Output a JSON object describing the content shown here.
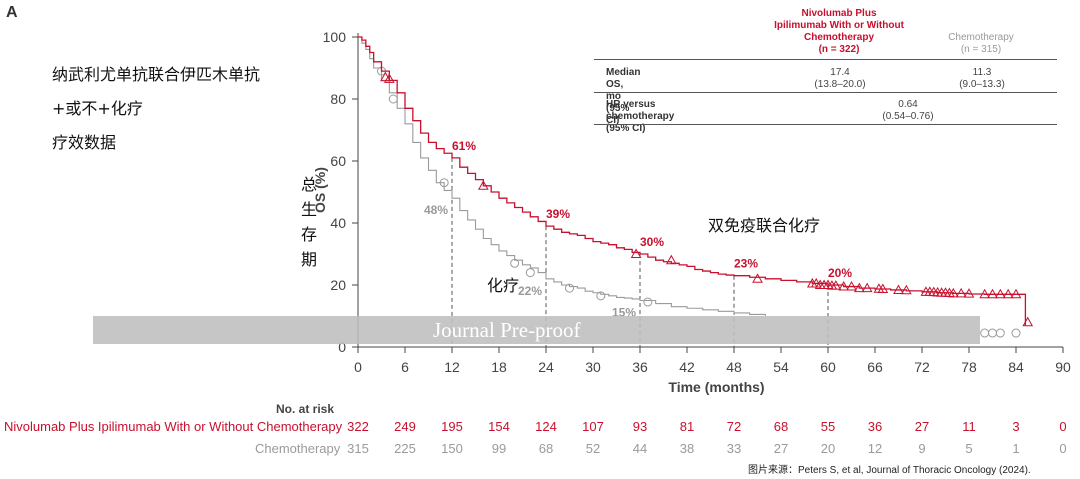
{
  "panel_letter": "A",
  "cn_title_lines": [
    "纳武利尤单抗联合伊匹木单抗",
    "+或不+化疗",
    "疗效数据"
  ],
  "cn_ylabel_chars": [
    "总",
    "生",
    "存",
    "期"
  ],
  "cn_annotations": {
    "combo": "双免疫联合化疗",
    "chemo": "化疗"
  },
  "watermark": "Journal Pre-proof",
  "colors": {
    "combo": "#c8102e",
    "chemo": "#9a9a9a",
    "axis": "#444444"
  },
  "summary_table": {
    "header_combo": [
      "Nivolumab Plus",
      "Ipilimumab With or Without",
      "Chemotherapy",
      "(n = 322)"
    ],
    "header_chemo": [
      "Chemotherapy",
      "(n = 315)"
    ],
    "rows": [
      {
        "label": [
          "Median OS, mo",
          "(95% CI)"
        ],
        "combo": [
          "17.4",
          "(13.8–20.0)"
        ],
        "chemo": [
          "11.3",
          "(9.0–13.3)"
        ]
      },
      {
        "label": [
          "HR versus chemotherapy",
          "(95% CI)"
        ],
        "shared": [
          "0.64",
          "(0.54–0.76)"
        ]
      }
    ]
  },
  "at_risk": {
    "title": "No. at risk",
    "combo_label": "Nivolumab Plus Ipilimumab With or Without Chemotherapy",
    "chemo_label": "Chemotherapy",
    "times": [
      0,
      6,
      12,
      18,
      24,
      30,
      36,
      42,
      48,
      54,
      60,
      66,
      72,
      78,
      84,
      90
    ],
    "combo": [
      "322",
      "249",
      "195",
      "154",
      "124",
      "107",
      "93",
      "81",
      "72",
      "68",
      "55",
      "36",
      "27",
      "11",
      "3",
      "0"
    ],
    "chemo": [
      "315",
      "225",
      "150",
      "99",
      "68",
      "52",
      "44",
      "38",
      "33",
      "27",
      "20",
      "12",
      "9",
      "5",
      "1",
      "0"
    ]
  },
  "source": "图片来源：Peters S, et al, Journal of Thoracic Oncology (2024).",
  "chart_data": {
    "type": "line",
    "xlabel": "Time (months)",
    "ylabel": "OS (%)",
    "xlim": [
      0,
      90
    ],
    "ylim": [
      0,
      100
    ],
    "xticks": [
      0,
      6,
      12,
      18,
      24,
      30,
      36,
      42,
      48,
      54,
      60,
      66,
      72,
      78,
      84,
      90
    ],
    "yticks": [
      0,
      20,
      40,
      60,
      80,
      100
    ],
    "series": [
      {
        "name": "Nivolumab Plus Ipilimumab With or Without Chemotherapy",
        "key": "combo",
        "x": [
          0,
          0.5,
          1,
          1.5,
          2,
          3,
          4,
          5,
          6,
          7,
          8,
          9,
          10,
          11,
          12,
          13,
          14,
          15,
          16,
          17,
          18,
          19,
          20,
          21,
          22,
          23,
          24,
          25,
          26,
          27,
          28,
          29,
          30,
          31,
          32,
          33,
          34,
          35,
          36,
          37,
          38,
          39,
          40,
          41,
          42,
          43,
          44,
          45,
          46,
          47,
          48,
          50,
          52,
          54,
          56,
          58,
          60,
          62,
          64,
          66,
          68,
          70,
          72,
          74,
          76,
          78,
          80,
          82,
          84.8,
          85.2
        ],
        "y": [
          100,
          99,
          97,
          95,
          92,
          89,
          86,
          82,
          77,
          73,
          69,
          66,
          64,
          62.5,
          61,
          58,
          56,
          54,
          52,
          50,
          48,
          46.5,
          45,
          43.5,
          42,
          40.5,
          39,
          38,
          37,
          36.5,
          36,
          35,
          34,
          33.5,
          33,
          32,
          31.5,
          30.5,
          30,
          29,
          28,
          27.5,
          27,
          26.5,
          26,
          25,
          24.5,
          24,
          23.5,
          23.2,
          23,
          22.5,
          22,
          21.5,
          21,
          20.5,
          20,
          19.5,
          19,
          18.7,
          18.4,
          18.1,
          17.8,
          17.5,
          17.3,
          17.1,
          17,
          17,
          17,
          7
        ],
        "censor_x": [
          3.5,
          4,
          16,
          35.5,
          40,
          51,
          58,
          58.5,
          59,
          59.5,
          60,
          60.5,
          61,
          62,
          63,
          64,
          65,
          66.5,
          67,
          69,
          70,
          72.5,
          73,
          73.5,
          74,
          74.5,
          75,
          75.5,
          76,
          77,
          78,
          80,
          81,
          82,
          83,
          84,
          85.5
        ],
        "censor_y": [
          87,
          86.5,
          52,
          30,
          28,
          22,
          20.5,
          20.5,
          20,
          20,
          20,
          19.8,
          19.8,
          19.5,
          19.5,
          19,
          19,
          18.8,
          18.7,
          18.4,
          18.3,
          17.8,
          17.8,
          17.7,
          17.6,
          17.5,
          17.5,
          17.4,
          17.3,
          17.3,
          17.2,
          17,
          17,
          17,
          17,
          17,
          8
        ]
      },
      {
        "name": "Chemotherapy",
        "key": "chemo",
        "x": [
          0,
          0.5,
          1,
          1.5,
          2,
          3,
          4,
          5,
          6,
          7,
          8,
          9,
          10,
          11,
          12,
          13,
          14,
          15,
          16,
          17,
          18,
          19,
          20,
          21,
          22,
          23,
          24,
          25,
          26,
          27,
          28,
          29,
          30,
          31,
          32,
          33,
          34,
          35,
          36,
          38,
          40,
          42,
          44,
          46,
          48,
          50,
          52
        ],
        "y": [
          100,
          98,
          96,
          93,
          90,
          86,
          82,
          77,
          72,
          66,
          61,
          57,
          53,
          50.5,
          48,
          44,
          41,
          38,
          35,
          33,
          31,
          29.5,
          28,
          26.5,
          25.5,
          24,
          22,
          21,
          20,
          19.5,
          19,
          18,
          17.5,
          17,
          16.5,
          16,
          15.8,
          15.5,
          15,
          14,
          13,
          12.5,
          12,
          11.5,
          11,
          10.5,
          10
        ],
        "censor_x": [
          3,
          4.5,
          11,
          20,
          22,
          27,
          31,
          37,
          80,
          81,
          82,
          84
        ],
        "censor_y": [
          89,
          80,
          53,
          27,
          24,
          19,
          16.5,
          14.5,
          4.5,
          4.5,
          4.5,
          4.5
        ]
      }
    ],
    "milestones": [
      {
        "series": "combo",
        "x": 12,
        "y": 61,
        "label": "61%"
      },
      {
        "series": "combo",
        "x": 24,
        "y": 39,
        "label": "39%"
      },
      {
        "series": "combo",
        "x": 36,
        "y": 30,
        "label": "30%"
      },
      {
        "series": "combo",
        "x": 48,
        "y": 23,
        "label": "23%"
      },
      {
        "series": "combo",
        "x": 60,
        "y": 20,
        "label": "20%"
      },
      {
        "series": "chemo",
        "x": 12,
        "y": 48,
        "label": "48%"
      },
      {
        "series": "chemo",
        "x": 24,
        "y": 22,
        "label": "22%"
      },
      {
        "series": "chemo",
        "x": 36,
        "y": 15,
        "label": "15%"
      }
    ]
  }
}
